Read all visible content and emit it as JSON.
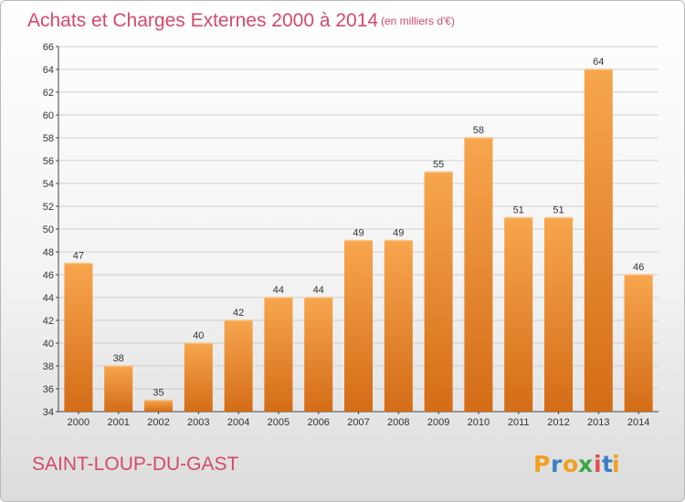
{
  "chart_data": {
    "type": "bar",
    "title": "Achats et Charges Externes 2000 à 2014",
    "subtitle": "(en milliers d'€)",
    "categories": [
      "2000",
      "2001",
      "2002",
      "2003",
      "2004",
      "2005",
      "2006",
      "2007",
      "2008",
      "2009",
      "2010",
      "2011",
      "2012",
      "2013",
      "2014"
    ],
    "values": [
      47,
      38,
      35,
      40,
      42,
      44,
      44,
      49,
      49,
      55,
      58,
      51,
      51,
      64,
      46
    ],
    "xlabel": "",
    "ylabel": "",
    "ylim": [
      34,
      66
    ],
    "yticks": [
      34,
      36,
      38,
      40,
      42,
      44,
      46,
      48,
      50,
      52,
      54,
      56,
      58,
      60,
      62,
      64,
      66
    ],
    "grid": true,
    "bar_color_top": "#f7a64e",
    "bar_color_bottom": "#d46c16"
  },
  "footer": {
    "place_name": "SAINT-LOUP-DU-GAST",
    "logo_letters": [
      "P",
      "r",
      "o",
      "x",
      "i",
      "t",
      "i"
    ],
    "logo_colors": [
      "#f0a020",
      "#3a7fc4",
      "#f0a020",
      "#3aa84a",
      "#e05050",
      "#3a7fc4",
      "#f0a020"
    ]
  }
}
